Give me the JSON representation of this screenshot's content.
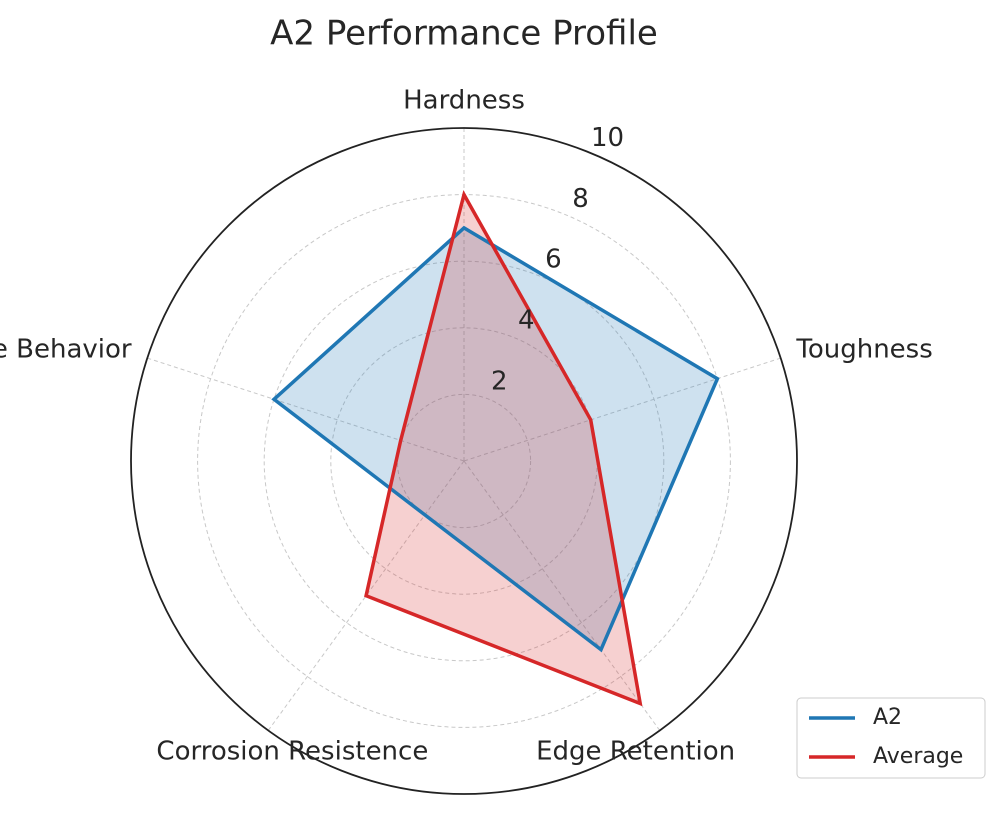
{
  "chart_data": {
    "type": "radar",
    "title": "A2 Performance Profile",
    "categories": [
      "Hardness",
      "Toughness",
      "Edge Retention",
      "Corrosion Resistence",
      "Edge Behavior"
    ],
    "series": [
      {
        "name": "A2",
        "color": "#1f77b4",
        "values": [
          7,
          8,
          7,
          2,
          6
        ]
      },
      {
        "name": "Average",
        "color": "#d62728",
        "values": [
          8,
          4,
          9,
          5,
          2
        ]
      }
    ],
    "rlim": [
      0,
      10
    ],
    "rticks": [
      2,
      4,
      6,
      8,
      10
    ],
    "grid": true,
    "legend": "lower right"
  }
}
